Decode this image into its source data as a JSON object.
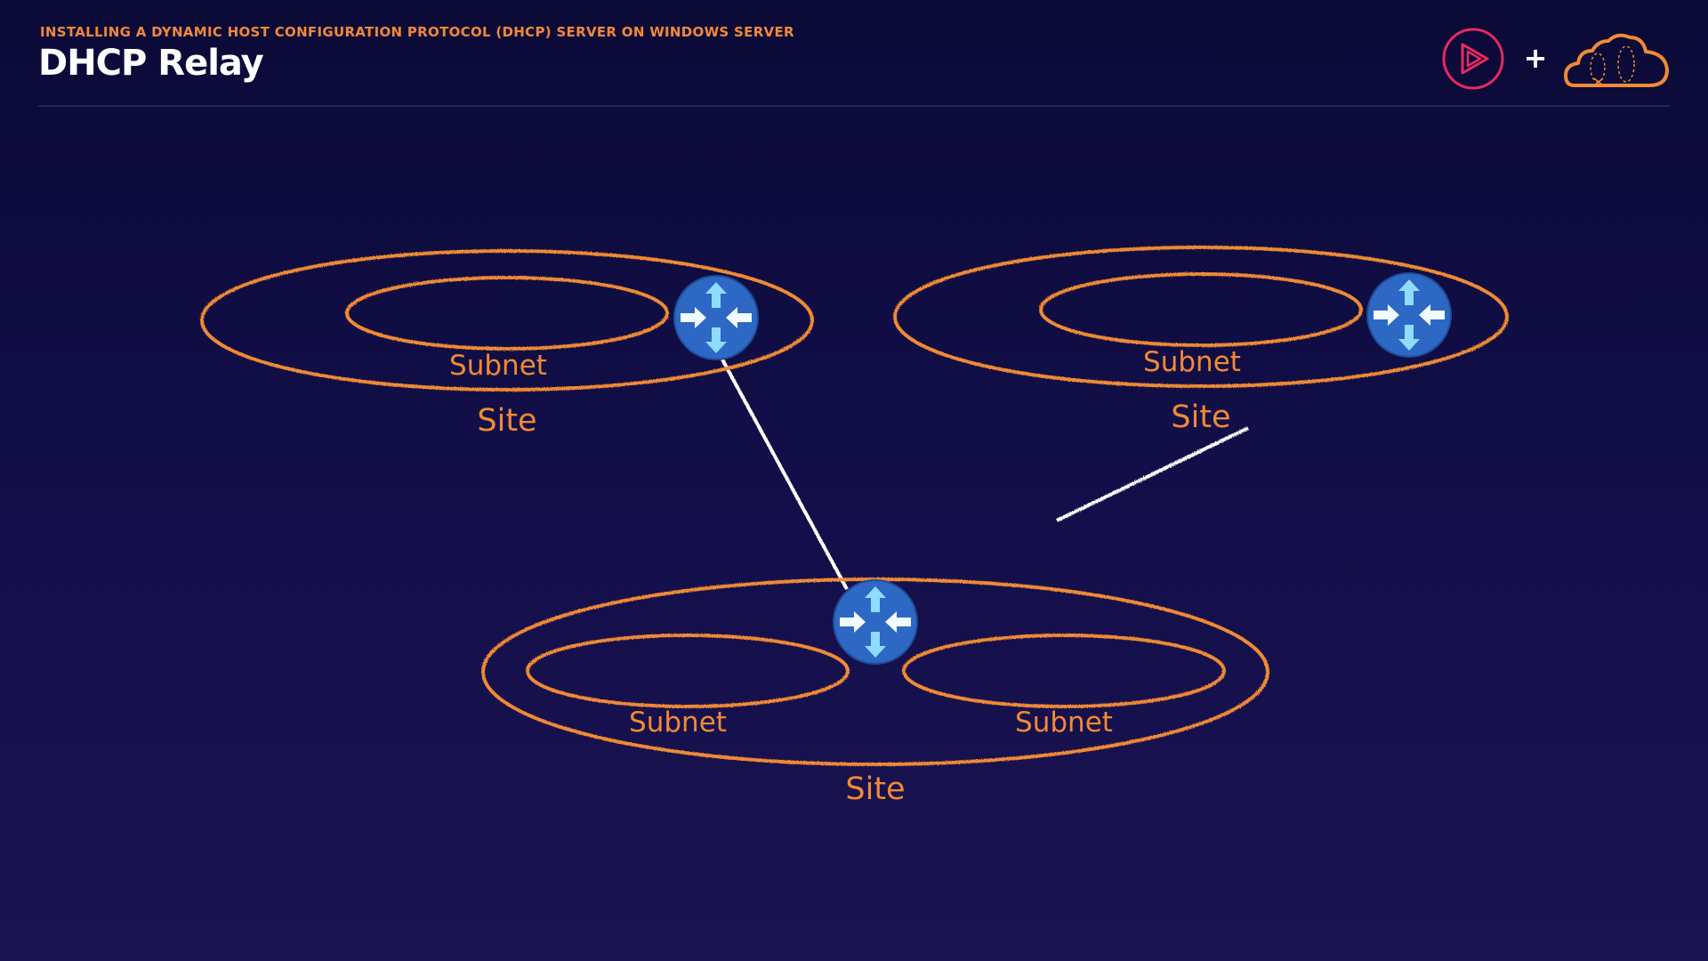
{
  "header": {
    "course_title": "INSTALLING A DYNAMIC HOST CONFIGURATION PROTOCOL (DHCP) SERVER ON WINDOWS SERVER",
    "slide_title": "DHCP Relay",
    "plus_symbol": "+"
  },
  "diagram": {
    "sites": [
      {
        "label": "Site",
        "subnets": [
          {
            "label": "Subnet"
          }
        ]
      },
      {
        "label": "Site",
        "subnets": [
          {
            "label": "Subnet"
          }
        ]
      },
      {
        "label": "Site",
        "subnets": [
          {
            "label": "Subnet"
          },
          {
            "label": "Subnet"
          }
        ]
      }
    ],
    "routers": [
      "router-icon",
      "router-icon",
      "router-icon"
    ],
    "links": [
      "site-1 router to site-3 router",
      "partial link toward site-2"
    ]
  },
  "colors": {
    "ellipse_stroke": "#f08a34",
    "label_color": "#f08a34",
    "router_fill": "#2d68c4",
    "arrow_fill": "#8fdcff",
    "link_color": "#ffffff",
    "title_color": "#ffffff",
    "course_title_color": "#f2883a"
  },
  "icons": [
    "pluralsight-play-icon",
    "plus-icon",
    "cloud-icon",
    "router-icon"
  ]
}
